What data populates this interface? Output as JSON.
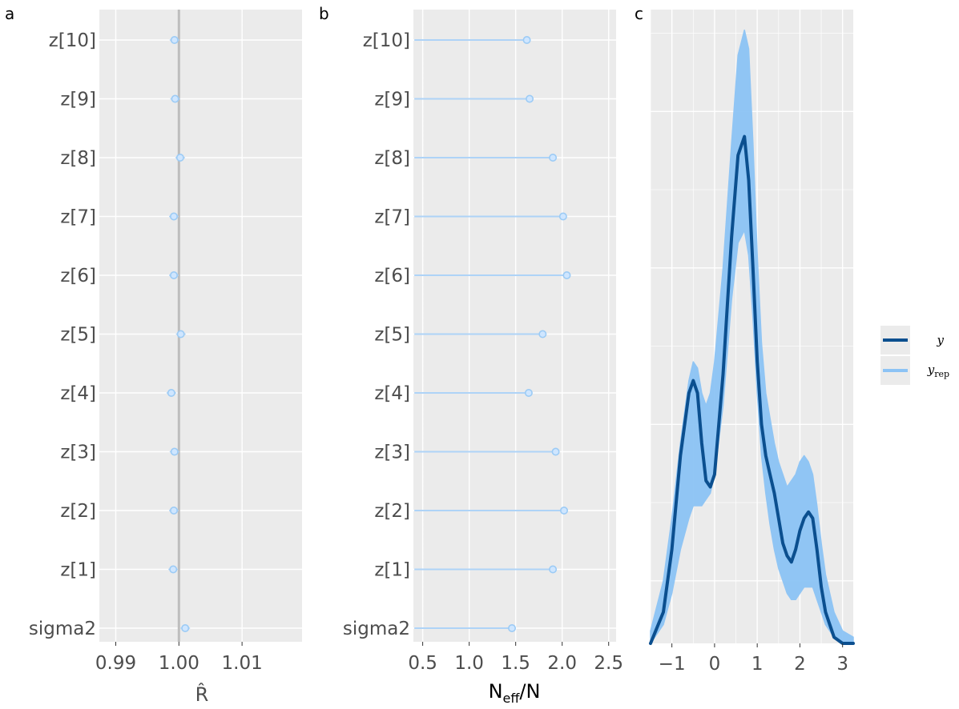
{
  "colors": {
    "panel_bg": "#ebebeb",
    "grid_major": "#ffffff",
    "point_fill": "#cfe6ff",
    "point_stroke": "#9ccbf5",
    "segment": "#aed3f7",
    "ref_line": "#bdbdbd",
    "y_line": "#0b4f8f",
    "yrep_line": "#8cc3f5"
  },
  "chart_data": [
    {
      "panel_label": "a",
      "type": "scatter",
      "xlabel": "R̂",
      "categories": [
        "z[10]",
        "z[9]",
        "z[8]",
        "z[7]",
        "z[6]",
        "z[5]",
        "z[4]",
        "z[3]",
        "z[2]",
        "z[1]",
        "sigma2"
      ],
      "values": [
        0.9993,
        0.9994,
        1.0002,
        0.9992,
        0.9992,
        1.0003,
        0.9988,
        0.9993,
        0.9992,
        0.9991,
        1.001
      ],
      "reference_line": 1.0,
      "dotted_line": 1.01,
      "xlim": [
        0.9874,
        1.0195
      ],
      "xticks": [
        0.99,
        1.0,
        1.01
      ],
      "xtick_labels": [
        "0.99",
        "1.00",
        "1.01"
      ],
      "grid": true
    },
    {
      "panel_label": "b",
      "type": "scatter",
      "xlabel_main": "N",
      "xlabel_sub": "eff",
      "xlabel_tail": "/N",
      "categories": [
        "z[10]",
        "z[9]",
        "z[8]",
        "z[7]",
        "z[6]",
        "z[5]",
        "z[4]",
        "z[3]",
        "z[2]",
        "z[1]",
        "sigma2"
      ],
      "values": [
        1.62,
        1.65,
        1.9,
        2.01,
        2.05,
        1.79,
        1.64,
        1.93,
        2.02,
        1.9,
        1.46
      ],
      "segment_start": 0.41,
      "dotted_lines": [
        0.5,
        1.0
      ],
      "xlim": [
        0.4,
        2.58
      ],
      "xticks": [
        0.5,
        1.0,
        1.5,
        2.0,
        2.5
      ],
      "xtick_labels": [
        "0.5",
        "1.0",
        "1.5",
        "2.0",
        "2.5"
      ],
      "grid": true
    },
    {
      "panel_label": "c",
      "type": "line",
      "xlim": [
        -1.5,
        3.25
      ],
      "xticks": [
        -1,
        0,
        1,
        2,
        3
      ],
      "xtick_labels": [
        "−1",
        "0",
        "1",
        "2",
        "3"
      ],
      "ylim": [
        0,
        1.0
      ],
      "series": [
        {
          "name": "y",
          "x": [
            -1.5,
            -1.2,
            -1.0,
            -0.8,
            -0.6,
            -0.5,
            -0.4,
            -0.3,
            -0.2,
            -0.1,
            0.0,
            0.2,
            0.4,
            0.55,
            0.7,
            0.8,
            0.9,
            1.0,
            1.1,
            1.2,
            1.3,
            1.4,
            1.5,
            1.6,
            1.7,
            1.8,
            1.9,
            2.0,
            2.1,
            2.2,
            2.3,
            2.4,
            2.5,
            2.6,
            2.8,
            3.0,
            3.25
          ],
          "values": [
            0.0,
            0.05,
            0.15,
            0.3,
            0.4,
            0.42,
            0.4,
            0.32,
            0.26,
            0.25,
            0.27,
            0.43,
            0.65,
            0.78,
            0.81,
            0.74,
            0.6,
            0.45,
            0.35,
            0.3,
            0.27,
            0.24,
            0.2,
            0.16,
            0.14,
            0.13,
            0.15,
            0.18,
            0.2,
            0.21,
            0.2,
            0.15,
            0.09,
            0.05,
            0.01,
            0.0,
            0.0
          ]
        },
        {
          "name": "y_rep",
          "x": [
            -1.5,
            -1.2,
            -1.0,
            -0.8,
            -0.6,
            -0.5,
            -0.4,
            -0.3,
            -0.2,
            -0.1,
            0.0,
            0.2,
            0.4,
            0.55,
            0.7,
            0.8,
            0.9,
            1.0,
            1.1,
            1.2,
            1.3,
            1.4,
            1.5,
            1.6,
            1.7,
            1.8,
            1.9,
            2.0,
            2.1,
            2.2,
            2.3,
            2.4,
            2.5,
            2.6,
            2.8,
            3.0,
            3.25
          ],
          "lower": [
            0.0,
            0.03,
            0.08,
            0.15,
            0.2,
            0.22,
            0.22,
            0.22,
            0.23,
            0.24,
            0.27,
            0.38,
            0.55,
            0.64,
            0.66,
            0.62,
            0.52,
            0.4,
            0.3,
            0.24,
            0.19,
            0.15,
            0.12,
            0.1,
            0.08,
            0.07,
            0.07,
            0.08,
            0.09,
            0.09,
            0.09,
            0.07,
            0.05,
            0.03,
            0.01,
            0.0,
            0.0
          ],
          "upper": [
            0.02,
            0.1,
            0.2,
            0.32,
            0.42,
            0.45,
            0.44,
            0.4,
            0.38,
            0.4,
            0.45,
            0.6,
            0.8,
            0.94,
            0.98,
            0.95,
            0.8,
            0.62,
            0.48,
            0.4,
            0.36,
            0.32,
            0.29,
            0.27,
            0.25,
            0.26,
            0.27,
            0.29,
            0.3,
            0.29,
            0.27,
            0.22,
            0.16,
            0.11,
            0.05,
            0.02,
            0.01
          ]
        }
      ],
      "legend": {
        "placement": "right",
        "entries": [
          {
            "label": "y",
            "sub": ""
          },
          {
            "label": "y",
            "sub": "rep"
          }
        ]
      }
    }
  ]
}
